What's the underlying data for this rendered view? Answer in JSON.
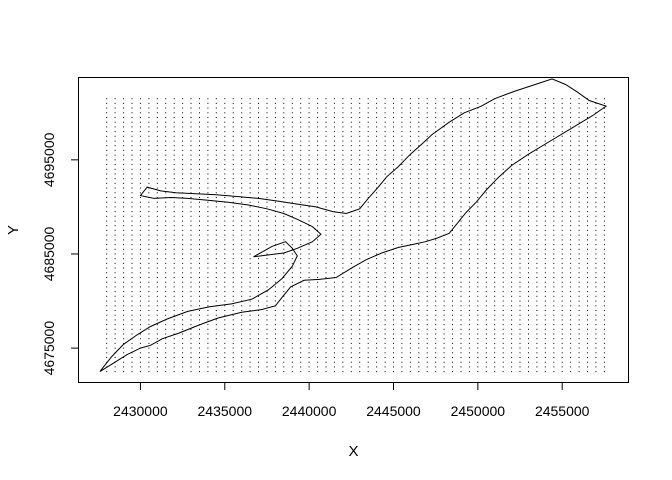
{
  "chart_data": {
    "type": "scatter",
    "xlabel": "X",
    "ylabel": "Y",
    "xlim": [
      2426300,
      2458900
    ],
    "ylim": [
      4671400,
      4703800
    ],
    "grid": false,
    "x_ticks": [
      "2430000",
      "2435000",
      "2440000",
      "2445000",
      "2450000",
      "2455000"
    ],
    "y_ticks": [
      "4675000",
      "4685000",
      "4695000"
    ],
    "point_grid": {
      "x_start": 2428000,
      "x_step": 500,
      "x_count": 60,
      "y_start": 4672500,
      "y_step": 500,
      "y_count": 59,
      "color": "#000000"
    },
    "outline": [
      [
        2427600,
        4672500
      ],
      [
        2428400,
        4673400
      ],
      [
        2429200,
        4674300
      ],
      [
        2430000,
        4675000
      ],
      [
        2430600,
        4675300
      ],
      [
        2431300,
        4676000
      ],
      [
        2432300,
        4676600
      ],
      [
        2433400,
        4677400
      ],
      [
        2434600,
        4678200
      ],
      [
        2436000,
        4678800
      ],
      [
        2437200,
        4679100
      ],
      [
        2438000,
        4679500
      ],
      [
        2438400,
        4680400
      ],
      [
        2438900,
        4681500
      ],
      [
        2439700,
        4682200
      ],
      [
        2440600,
        4682300
      ],
      [
        2441600,
        4682500
      ],
      [
        2442600,
        4683600
      ],
      [
        2443400,
        4684400
      ],
      [
        2444300,
        4685100
      ],
      [
        2445300,
        4685700
      ],
      [
        2446100,
        4686000
      ],
      [
        2446900,
        4686300
      ],
      [
        2447600,
        4686700
      ],
      [
        2448300,
        4687200
      ],
      [
        2448800,
        4688300
      ],
      [
        2449300,
        4689400
      ],
      [
        2449900,
        4690500
      ],
      [
        2450500,
        4691800
      ],
      [
        2451200,
        4693100
      ],
      [
        2452000,
        4694400
      ],
      [
        2453000,
        4695600
      ],
      [
        2454200,
        4696900
      ],
      [
        2455600,
        4698400
      ],
      [
        2456800,
        4699700
      ],
      [
        2457600,
        4700700
      ],
      [
        2456600,
        4701300
      ],
      [
        2455900,
        4702200
      ],
      [
        2455200,
        4703000
      ],
      [
        2454400,
        4703600
      ],
      [
        2453400,
        4703000
      ],
      [
        2452200,
        4702300
      ],
      [
        2451000,
        4701500
      ],
      [
        2450200,
        4700700
      ],
      [
        2449200,
        4700000
      ],
      [
        2448300,
        4699000
      ],
      [
        2447300,
        4697700
      ],
      [
        2446700,
        4696700
      ],
      [
        2446000,
        4695600
      ],
      [
        2445300,
        4694300
      ],
      [
        2444600,
        4693200
      ],
      [
        2444100,
        4692100
      ],
      [
        2443500,
        4690900
      ],
      [
        2443000,
        4689800
      ],
      [
        2442200,
        4689300
      ],
      [
        2441400,
        4689500
      ],
      [
        2440400,
        4690000
      ],
      [
        2439300,
        4690300
      ],
      [
        2438200,
        4690600
      ],
      [
        2437000,
        4690900
      ],
      [
        2435800,
        4691100
      ],
      [
        2434500,
        4691300
      ],
      [
        2433300,
        4691400
      ],
      [
        2432100,
        4691500
      ],
      [
        2431200,
        4691700
      ],
      [
        2430400,
        4692100
      ],
      [
        2430000,
        4691200
      ],
      [
        2430800,
        4690900
      ],
      [
        2431800,
        4691000
      ],
      [
        2432800,
        4690900
      ],
      [
        2434000,
        4690700
      ],
      [
        2435200,
        4690500
      ],
      [
        2436400,
        4690200
      ],
      [
        2437500,
        4689800
      ],
      [
        2438500,
        4689300
      ],
      [
        2439400,
        4688600
      ],
      [
        2440200,
        4687900
      ],
      [
        2440700,
        4687100
      ],
      [
        2440200,
        4686300
      ],
      [
        2439300,
        4685600
      ],
      [
        2438500,
        4685100
      ],
      [
        2437600,
        4684900
      ],
      [
        2436700,
        4684700
      ],
      [
        2437800,
        4685800
      ],
      [
        2438600,
        4686300
      ],
      [
        2439000,
        4685600
      ],
      [
        2439300,
        4684800
      ],
      [
        2439000,
        4683700
      ],
      [
        2438400,
        4682400
      ],
      [
        2437600,
        4681200
      ],
      [
        2436600,
        4680200
      ],
      [
        2435400,
        4679700
      ],
      [
        2434100,
        4679400
      ],
      [
        2432800,
        4678900
      ],
      [
        2431600,
        4678100
      ],
      [
        2430600,
        4677300
      ],
      [
        2429800,
        4676400
      ],
      [
        2429000,
        4675400
      ],
      [
        2428300,
        4674100
      ],
      [
        2427600,
        4672500
      ]
    ]
  }
}
